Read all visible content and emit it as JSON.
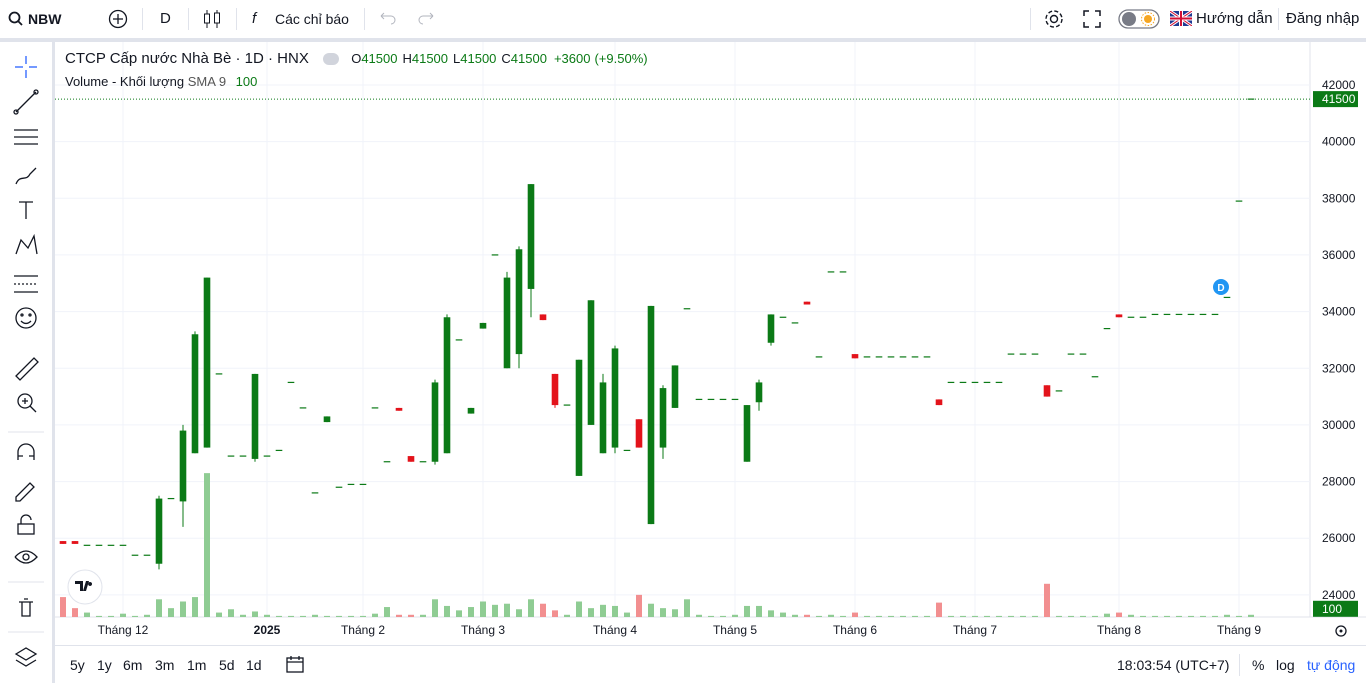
{
  "toolbar": {
    "symbol": "NBW",
    "interval": "D",
    "indicators": "Các chỉ báo",
    "guide": "Hướng dẫn",
    "login": "Đăng nhập"
  },
  "chart_data": {
    "type": "candlestick",
    "title": "CTCP Cấp nước Nhà Bè · 1D · HNX",
    "legend": [
      {
        "label": "O",
        "value": 41500
      },
      {
        "label": "H",
        "value": 41500
      },
      {
        "label": "L",
        "value": 41500
      },
      {
        "label": "C",
        "value": 41500
      }
    ],
    "change": "+3600",
    "change_percent": "(+9.50%)",
    "volume_title": "Volume - Khối lượng",
    "sma_label": "SMA 9",
    "volume_last": 100,
    "last_price": 41500,
    "marker": "D",
    "up_color": "#0b7a16",
    "down_color": "#e3131b",
    "volume_up_color": "#8fcc93",
    "volume_down_color": "#f28f90",
    "grid": true,
    "ylim": [
      23220,
      43410
    ],
    "yticks": [
      24000,
      26000,
      28000,
      30000,
      32000,
      34000,
      36000,
      38000,
      40000,
      42000
    ],
    "vlim": [
      0,
      7500
    ],
    "categories": [
      null,
      null,
      null,
      null,
      null,
      "Tháng 12",
      null,
      null,
      null,
      null,
      null,
      null,
      null,
      null,
      null,
      null,
      null,
      "2025",
      null,
      null,
      null,
      null,
      null,
      null,
      null,
      "Tháng 2",
      null,
      null,
      null,
      null,
      null,
      null,
      null,
      null,
      null,
      "Tháng 3",
      null,
      null,
      null,
      null,
      null,
      null,
      null,
      null,
      null,
      null,
      "Tháng 4",
      null,
      null,
      null,
      null,
      null,
      null,
      null,
      null,
      null,
      "Tháng 5",
      null,
      null,
      null,
      null,
      null,
      null,
      null,
      null,
      null,
      "Tháng 6",
      null,
      null,
      null,
      null,
      null,
      null,
      null,
      null,
      null,
      "Tháng 7",
      null,
      null,
      null,
      null,
      null,
      null,
      null,
      null,
      null,
      null,
      null,
      "Tháng 8",
      null,
      null,
      null,
      null,
      null,
      null,
      null,
      null,
      null,
      "Tháng 9",
      null
    ],
    "ohlc": [
      [
        25900,
        25900,
        25800,
        25800
      ],
      [
        25900,
        25900,
        25800,
        25800
      ],
      [
        25750,
        25750,
        25750,
        25750
      ],
      [
        25750,
        25750,
        25750,
        25750
      ],
      [
        25750,
        25750,
        25750,
        25750
      ],
      [
        25750,
        25750,
        25750,
        25750
      ],
      [
        25400,
        25400,
        25400,
        25400
      ],
      [
        25400,
        25400,
        25400,
        25400
      ],
      [
        25100,
        27500,
        24900,
        27400
      ],
      [
        27400,
        27400,
        27400,
        27400
      ],
      [
        27300,
        30000,
        26400,
        29800
      ],
      [
        29000,
        33300,
        29000,
        33200
      ],
      [
        29200,
        35200,
        29200,
        35200
      ],
      [
        31800,
        31800,
        31800,
        31800
      ],
      [
        28900,
        28900,
        28900,
        28900
      ],
      [
        28900,
        28900,
        28900,
        28900
      ],
      [
        28800,
        31800,
        28700,
        31800
      ],
      [
        28900,
        28900,
        28900,
        28900
      ],
      [
        29100,
        29100,
        29100,
        29100
      ],
      [
        31500,
        31500,
        31500,
        31500
      ],
      [
        30600,
        30600,
        30600,
        30600
      ],
      [
        27600,
        27600,
        27600,
        27600
      ],
      [
        30100,
        30300,
        30100,
        30300
      ],
      [
        27800,
        27800,
        27800,
        27800
      ],
      [
        27900,
        27900,
        27900,
        27900
      ],
      [
        27900,
        27900,
        27900,
        27900
      ],
      [
        30600,
        30600,
        30600,
        30600
      ],
      [
        28700,
        28700,
        28700,
        28700
      ],
      [
        30600,
        30600,
        30500,
        30500
      ],
      [
        28900,
        28900,
        28700,
        28700
      ],
      [
        28700,
        28700,
        28700,
        28700
      ],
      [
        28700,
        31600,
        28600,
        31500
      ],
      [
        29000,
        33900,
        29000,
        33800
      ],
      [
        33000,
        33000,
        33000,
        33000
      ],
      [
        30400,
        30600,
        30400,
        30600
      ],
      [
        33400,
        33600,
        33400,
        33600
      ],
      [
        36000,
        36000,
        36000,
        36000
      ],
      [
        32000,
        35400,
        32000,
        35200
      ],
      [
        32500,
        36300,
        32000,
        36200
      ],
      [
        34800,
        38500,
        33800,
        38500
      ],
      [
        33900,
        33900,
        33700,
        33700
      ],
      [
        31800,
        31800,
        30600,
        30700
      ],
      [
        30700,
        30700,
        30700,
        30700
      ],
      [
        28200,
        32300,
        28200,
        32300
      ],
      [
        30000,
        34400,
        30000,
        34400
      ],
      [
        29000,
        31800,
        29000,
        31500
      ],
      [
        29200,
        32800,
        29000,
        32700
      ],
      [
        29100,
        29100,
        29100,
        29100
      ],
      [
        30200,
        30200,
        29200,
        29200
      ],
      [
        26500,
        34200,
        26500,
        34200
      ],
      [
        29200,
        31400,
        28800,
        31300
      ],
      [
        30600,
        32100,
        30600,
        32100
      ],
      [
        34100,
        34100,
        34100,
        34100
      ],
      [
        30900,
        30900,
        30900,
        30900
      ],
      [
        30900,
        30900,
        30900,
        30900
      ],
      [
        30900,
        30900,
        30900,
        30900
      ],
      [
        30900,
        30900,
        30900,
        30900
      ],
      [
        28700,
        30700,
        28700,
        30700
      ],
      [
        30800,
        31600,
        30500,
        31500
      ],
      [
        32900,
        33900,
        32800,
        33900
      ],
      [
        33800,
        33800,
        33800,
        33800
      ],
      [
        33600,
        33600,
        33600,
        33600
      ],
      [
        34350,
        34350,
        34250,
        34250
      ],
      [
        32400,
        32400,
        32400,
        32400
      ],
      [
        35400,
        35400,
        35400,
        35400
      ],
      [
        35400,
        35400,
        35400,
        35400
      ],
      [
        32500,
        32500,
        32350,
        32350
      ],
      [
        32400,
        32400,
        32400,
        32400
      ],
      [
        32400,
        32400,
        32400,
        32400
      ],
      [
        32400,
        32400,
        32400,
        32400
      ],
      [
        32400,
        32400,
        32400,
        32400
      ],
      [
        32400,
        32400,
        32400,
        32400
      ],
      [
        32400,
        32400,
        32400,
        32400
      ],
      [
        30900,
        30900,
        30700,
        30700
      ],
      [
        31500,
        31500,
        31500,
        31500
      ],
      [
        31500,
        31500,
        31500,
        31500
      ],
      [
        31500,
        31500,
        31500,
        31500
      ],
      [
        31500,
        31500,
        31500,
        31500
      ],
      [
        31500,
        31500,
        31500,
        31500
      ],
      [
        32500,
        32500,
        32500,
        32500
      ],
      [
        32500,
        32500,
        32500,
        32500
      ],
      [
        32500,
        32500,
        32500,
        32500
      ],
      [
        31400,
        31400,
        31000,
        31000
      ],
      [
        31200,
        31200,
        31200,
        31200
      ],
      [
        32500,
        32500,
        32500,
        32500
      ],
      [
        32500,
        32500,
        32500,
        32500
      ],
      [
        31700,
        31700,
        31700,
        31700
      ],
      [
        33400,
        33400,
        33400,
        33400
      ],
      [
        33900,
        33900,
        33800,
        33800
      ],
      [
        33800,
        33800,
        33800,
        33800
      ],
      [
        33800,
        33800,
        33800,
        33800
      ],
      [
        33900,
        33900,
        33900,
        33900
      ],
      [
        33900,
        33900,
        33900,
        33900
      ],
      [
        33900,
        33900,
        33900,
        33900
      ],
      [
        33900,
        33900,
        33900,
        33900
      ],
      [
        33900,
        33900,
        33900,
        33900
      ],
      [
        33900,
        33900,
        33900,
        33900
      ],
      [
        34500,
        34500,
        34500,
        34500
      ],
      [
        37900,
        37900,
        37900,
        37900
      ],
      [
        41500,
        41500,
        41500,
        41500
      ]
    ],
    "volumes": [
      900,
      400,
      200,
      50,
      50,
      150,
      50,
      100,
      800,
      400,
      700,
      900,
      6500,
      200,
      350,
      100,
      250,
      100,
      50,
      50,
      50,
      100,
      50,
      50,
      50,
      50,
      150,
      450,
      100,
      100,
      100,
      800,
      500,
      300,
      450,
      700,
      550,
      600,
      350,
      800,
      600,
      300,
      100,
      700,
      400,
      550,
      500,
      200,
      1000,
      600,
      400,
      350,
      800,
      100,
      50,
      50,
      100,
      500,
      500,
      300,
      200,
      100,
      100,
      50,
      100,
      50,
      200,
      50,
      50,
      50,
      50,
      50,
      50,
      650,
      50,
      50,
      50,
      50,
      50,
      50,
      50,
      50,
      1500,
      50,
      50,
      50,
      50,
      150,
      200,
      100,
      50,
      50,
      50,
      50,
      50,
      50,
      50,
      100,
      50,
      100
    ]
  },
  "bottom_bar": {
    "ranges": [
      "5y",
      "1y",
      "6m",
      "3m",
      "1m",
      "5d",
      "1d"
    ],
    "time": "18:03:54 (UTC+7)",
    "percent": "%",
    "log": "log",
    "auto": "tự động"
  }
}
